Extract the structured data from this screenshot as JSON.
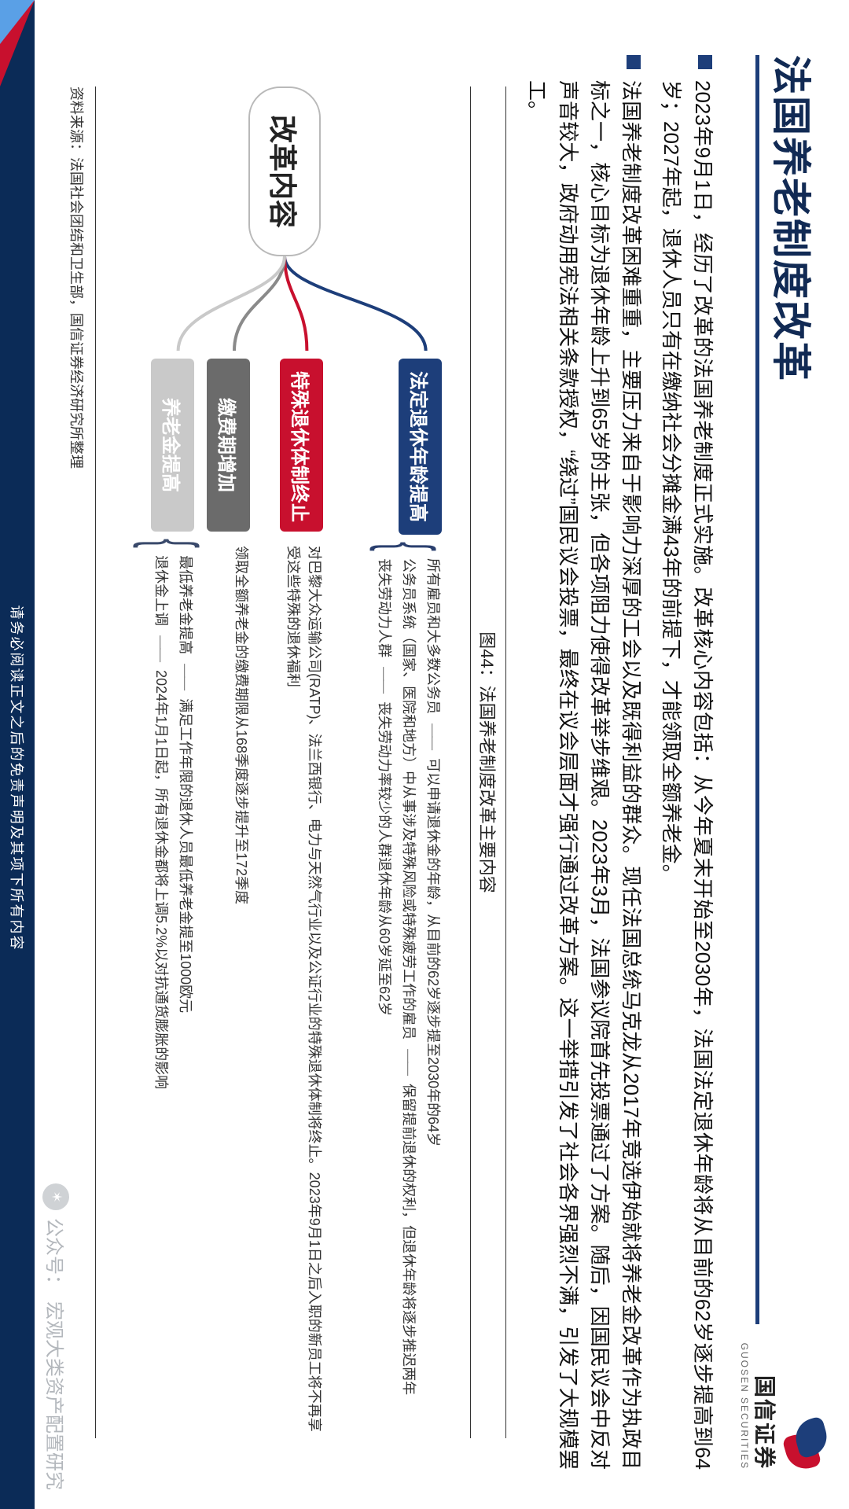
{
  "spine": {
    "disclaimer": "请务必阅读正文之后的免责声明及其项下所有内容"
  },
  "logo": {
    "cn": "国信证券",
    "en": "GUOSEN SECURITIES"
  },
  "title": "法国养老制度改革",
  "bullets": [
    "2023年9月1日，经历了改革的法国养老制度正式实施。改革核心内容包括：从今年夏末开始至2030年，法国法定退休年龄将从目前的62岁逐步提高到64岁；2027年起，退休人员只有在缴纳社会分摊金满43年的前提下，才能领取全额养老金。",
    "法国养老制度改革困难重重，主要压力来自于影响力深厚的工会以及既得利益的群众。现任法国总统马克龙从2017年竞选伊始就将养老金改革作为执政目标之一，核心目标为退休年龄上升到65岁的主张，但各项阻力使得改革举步维艰。2023年3月，法国参议院首先投票通过了方案。随后，因国民议会中反对声音较大，政府动用宪法相关条款授权，“绕过”国民议会投票，最终在议会层面才强行通过改革方案。这一举措引发了社会各界强烈不满，引发了大规模罢工。"
  ],
  "figure": {
    "caption": "图44：法国养老制度改革主要内容",
    "root": "改革内容",
    "branches": [
      {
        "top_pct": 2,
        "label": "法定退休年龄提高",
        "tag_color": "#1d3e7a",
        "connector_color": "#1d3e7a",
        "with_brace": true,
        "lines": [
          {
            "lead": "所有雇员和大多数公务员",
            "rest": "可以申请退休金的年龄，从目前的62岁逐步提至2030年的64岁"
          },
          {
            "lead": "公务员系统（国家、医院和地方）中从事涉及特殊风险或特殊疲劳工作的雇员",
            "rest": "保留提前退休的权利，但退休年龄将逐步推迟两年"
          },
          {
            "lead": "丧失劳动力人群",
            "rest": "丧失劳动力率较少的人群退休年龄从60岁延至62岁"
          }
        ]
      },
      {
        "top_pct": 38,
        "label": "特殊退休体制终止",
        "tag_color": "#c8102e",
        "connector_color": "#c8102e",
        "with_brace": false,
        "lines": [
          {
            "lead": "",
            "rest": "对巴黎大众运输公司(RATP)、法兰西银行、电力与天然气行业以及公证行业的特殊退休体制将终止。2023年9月1日之后入职的新员工将不再享受这些特殊的退休福利"
          }
        ]
      },
      {
        "top_pct": 60,
        "label": "缴费期增加",
        "tag_color": "#6b6b6b",
        "connector_color": "#8a8a8a",
        "with_brace": false,
        "lines": [
          {
            "lead": "",
            "rest": "领取全额养老金的缴费期限从168季度逐步提升至172季度"
          }
        ]
      },
      {
        "top_pct": 77,
        "label": "养老金提高",
        "tag_color": "#c9c9c9",
        "connector_color": "#c9c9c9",
        "with_brace": true,
        "lines": [
          {
            "lead": "最低养老金提高",
            "rest": "满足工作年限的退休人员最低养老金提至1000欧元"
          },
          {
            "lead": "退休金上调",
            "rest": "2024年1月1日起，所有退休金都将上调5.2%以对抗通货膨胀的影响"
          }
        ]
      }
    ],
    "source": "资料来源：法国社会团结和卫生部，国信证券经济研究所整理"
  },
  "watermark": {
    "prefix": "公众号：",
    "name": "宏观大类资产配置研究"
  },
  "style": {
    "navy": "#1d3e7a",
    "red": "#c8102e",
    "grey": "#6b6b6b",
    "ltgrey": "#c9c9c9",
    "title_fontsize": 50,
    "body_fontsize": 26,
    "detail_fontsize": 18
  }
}
